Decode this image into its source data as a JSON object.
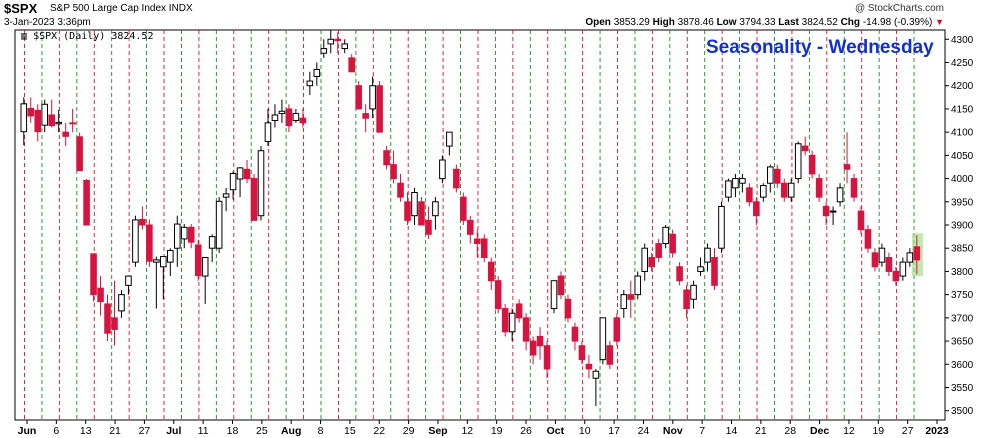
{
  "header": {
    "symbol": "$SPX",
    "description": "S&P 500 Large Cap Index INDX",
    "credit": "@ StockCharts.com",
    "timestamp": "3-Jan-2023 3:36pm",
    "open_label": "Open",
    "open": "3853.29",
    "high_label": "High",
    "high": "3878.46",
    "low_label": "Low",
    "low": "3794.33",
    "last_label": "Last",
    "last": "3824.52",
    "chg_label": "Chg",
    "chg": "-14.98 (-0.39%)",
    "chg_icon": "down-triangle-icon"
  },
  "legend": "$SPX (Daily) 3824.52",
  "annotation": "Seasonality - Wednesday",
  "colors": {
    "up": "#000000",
    "down": "#d6143f",
    "grid_red": "#d01a1a",
    "grid_green": "#1a8a1a",
    "highlight": "#a8e08c"
  },
  "chart_data": {
    "type": "candlestick",
    "title": "Seasonality - Wednesday",
    "ylim": [
      3480,
      4320
    ],
    "yticks": [
      3500,
      3550,
      3600,
      3650,
      3700,
      3750,
      3800,
      3850,
      3900,
      3950,
      4000,
      4050,
      4100,
      4150,
      4200,
      4250,
      4300
    ],
    "xticks": [
      "Jun",
      "6",
      "13",
      "21",
      "27",
      "Jul",
      "11",
      "18",
      "25",
      "Aug",
      "8",
      "15",
      "22",
      "29",
      "Sep",
      "12",
      "19",
      "26",
      "Oct",
      "10",
      "17",
      "24",
      "Nov",
      "7",
      "14",
      "21",
      "28",
      "Dec",
      "12",
      "19",
      "27",
      "2023"
    ],
    "bold_xticks": [
      "Jun",
      "Jul",
      "Aug",
      "Sep",
      "Oct",
      "Nov",
      "Dec",
      "2023"
    ],
    "grid": "vertical dashed: red = Wednesday, green = Friday",
    "candles": [
      [
        4101,
        4175,
        4072,
        4161
      ],
      [
        4151,
        4175,
        4120,
        4135
      ],
      [
        4147,
        4160,
        4080,
        4101
      ],
      [
        4115,
        4170,
        4100,
        4160
      ],
      [
        4137,
        4170,
        4110,
        4114
      ],
      [
        4118,
        4148,
        4100,
        4121
      ],
      [
        4100,
        4120,
        4070,
        4091
      ],
      [
        4120,
        4150,
        4100,
        4118
      ],
      [
        4090,
        4099,
        4017,
        4017
      ],
      [
        3996,
        3999,
        3900,
        3900
      ],
      [
        3838,
        3838,
        3735,
        3750
      ],
      [
        3764,
        3790,
        3705,
        3735
      ],
      [
        3730,
        3750,
        3650,
        3667
      ],
      [
        3700,
        3780,
        3640,
        3675
      ],
      [
        3715,
        3760,
        3700,
        3750
      ],
      [
        3770,
        3790,
        3750,
        3790
      ],
      [
        3820,
        3920,
        3810,
        3911
      ],
      [
        3912,
        3940,
        3890,
        3900
      ],
      [
        3900,
        3912,
        3810,
        3822
      ],
      [
        3820,
        3832,
        3720,
        3825
      ],
      [
        3810,
        3832,
        3740,
        3832
      ],
      [
        3820,
        3850,
        3790,
        3845
      ],
      [
        3850,
        3920,
        3810,
        3902
      ],
      [
        3870,
        3902,
        3850,
        3895
      ],
      [
        3895,
        3902,
        3850,
        3863
      ],
      [
        3857,
        3867,
        3780,
        3791
      ],
      [
        3790,
        3830,
        3730,
        3830
      ],
      [
        3850,
        3880,
        3820,
        3875
      ],
      [
        3850,
        3960,
        3840,
        3951
      ],
      [
        3960,
        3980,
        3930,
        3967
      ],
      [
        3976,
        4015,
        3955,
        4011
      ],
      [
        3999,
        4025,
        3960,
        4023
      ],
      [
        4020,
        4040,
        3990,
        4000
      ],
      [
        4000,
        4010,
        3910,
        3910
      ],
      [
        3920,
        4070,
        3910,
        4060
      ],
      [
        4080,
        4150,
        4070,
        4120
      ],
      [
        4125,
        4160,
        4110,
        4137
      ],
      [
        4140,
        4170,
        4120,
        4145
      ],
      [
        4150,
        4160,
        4100,
        4114
      ],
      [
        4125,
        4150,
        4120,
        4140
      ],
      [
        4130,
        4150,
        4110,
        4120
      ],
      [
        4200,
        4230,
        4180,
        4210
      ],
      [
        4220,
        4250,
        4200,
        4235
      ],
      [
        4270,
        4300,
        4260,
        4280
      ],
      [
        4290,
        4320,
        4270,
        4300
      ],
      [
        4300,
        4315,
        4270,
        4297
      ],
      [
        4280,
        4300,
        4270,
        4290
      ],
      [
        4260,
        4268,
        4230,
        4230
      ],
      [
        4200,
        4210,
        4150,
        4150
      ],
      [
        4140,
        4160,
        4100,
        4130
      ],
      [
        4150,
        4220,
        4130,
        4200
      ],
      [
        4200,
        4210,
        4100,
        4100
      ],
      [
        4060,
        4070,
        4020,
        4030
      ],
      [
        4030,
        4060,
        3990,
        4000
      ],
      [
        3990,
        4010,
        3950,
        3960
      ],
      [
        3950,
        3970,
        3900,
        3910
      ],
      [
        3920,
        3980,
        3900,
        3970
      ],
      [
        3950,
        3960,
        3900,
        3900
      ],
      [
        3910,
        3940,
        3870,
        3880
      ],
      [
        3920,
        3960,
        3890,
        3950
      ],
      [
        4000,
        4050,
        3990,
        4040
      ],
      [
        4070,
        4100,
        4050,
        4100
      ],
      [
        4020,
        4030,
        3970,
        3980
      ],
      [
        3960,
        3970,
        3900,
        3910
      ],
      [
        3910,
        3920,
        3860,
        3880
      ],
      [
        3870,
        3890,
        3830,
        3860
      ],
      [
        3870,
        3880,
        3820,
        3830
      ],
      [
        3820,
        3830,
        3760,
        3780
      ],
      [
        3780,
        3790,
        3710,
        3720
      ],
      [
        3720,
        3730,
        3660,
        3670
      ],
      [
        3670,
        3720,
        3650,
        3710
      ],
      [
        3730,
        3740,
        3690,
        3700
      ],
      [
        3700,
        3710,
        3630,
        3650
      ],
      [
        3650,
        3660,
        3600,
        3620
      ],
      [
        3660,
        3680,
        3610,
        3640
      ],
      [
        3640,
        3650,
        3570,
        3590
      ],
      [
        3720,
        3780,
        3710,
        3780
      ],
      [
        3790,
        3800,
        3740,
        3750
      ],
      [
        3740,
        3750,
        3690,
        3700
      ],
      [
        3680,
        3690,
        3630,
        3650
      ],
      [
        3640,
        3650,
        3600,
        3610
      ],
      [
        3600,
        3620,
        3570,
        3590
      ],
      [
        3570,
        3590,
        3510,
        3585
      ],
      [
        3610,
        3700,
        3600,
        3700
      ],
      [
        3640,
        3650,
        3590,
        3600
      ],
      [
        3700,
        3710,
        3640,
        3650
      ],
      [
        3720,
        3760,
        3700,
        3750
      ],
      [
        3750,
        3780,
        3700,
        3740
      ],
      [
        3750,
        3800,
        3740,
        3790
      ],
      [
        3800,
        3860,
        3780,
        3850
      ],
      [
        3830,
        3840,
        3800,
        3810
      ],
      [
        3860,
        3870,
        3820,
        3830
      ],
      [
        3860,
        3900,
        3850,
        3895
      ],
      [
        3880,
        3890,
        3830,
        3840
      ],
      [
        3810,
        3820,
        3770,
        3780
      ],
      [
        3760,
        3770,
        3700,
        3720
      ],
      [
        3740,
        3780,
        3720,
        3770
      ],
      [
        3800,
        3830,
        3790,
        3810
      ],
      [
        3820,
        3860,
        3800,
        3850
      ],
      [
        3830,
        3850,
        3760,
        3770
      ],
      [
        3850,
        3950,
        3840,
        3940
      ],
      [
        3960,
        4000,
        3950,
        3995
      ],
      [
        3980,
        4010,
        3960,
        4000
      ],
      [
        3990,
        4010,
        3970,
        4000
      ],
      [
        3980,
        3990,
        3940,
        3950
      ],
      [
        3950,
        3960,
        3900,
        3920
      ],
      [
        3960,
        3990,
        3950,
        3985
      ],
      [
        3990,
        4030,
        3970,
        4025
      ],
      [
        4020,
        4030,
        3980,
        3990
      ],
      [
        3990,
        4000,
        3950,
        3960
      ],
      [
        3960,
        4000,
        3950,
        3990
      ],
      [
        4000,
        4080,
        3990,
        4075
      ],
      [
        4070,
        4090,
        4050,
        4060
      ],
      [
        4050,
        4060,
        4000,
        4010
      ],
      [
        4000,
        4010,
        3950,
        3960
      ],
      [
        3940,
        3950,
        3900,
        3920
      ],
      [
        3930,
        3940,
        3900,
        3930
      ],
      [
        3950,
        3990,
        3940,
        3980
      ],
      [
        4030,
        4100,
        3990,
        4020
      ],
      [
        4000,
        4010,
        3950,
        3960
      ],
      [
        3930,
        3940,
        3880,
        3890
      ],
      [
        3890,
        3900,
        3840,
        3850
      ],
      [
        3840,
        3850,
        3800,
        3810
      ],
      [
        3820,
        3860,
        3810,
        3850
      ],
      [
        3830,
        3840,
        3790,
        3800
      ],
      [
        3800,
        3810,
        3770,
        3780
      ],
      [
        3790,
        3830,
        3780,
        3820
      ],
      [
        3820,
        3850,
        3810,
        3840
      ],
      [
        3853,
        3878,
        3794,
        3825
      ]
    ]
  }
}
